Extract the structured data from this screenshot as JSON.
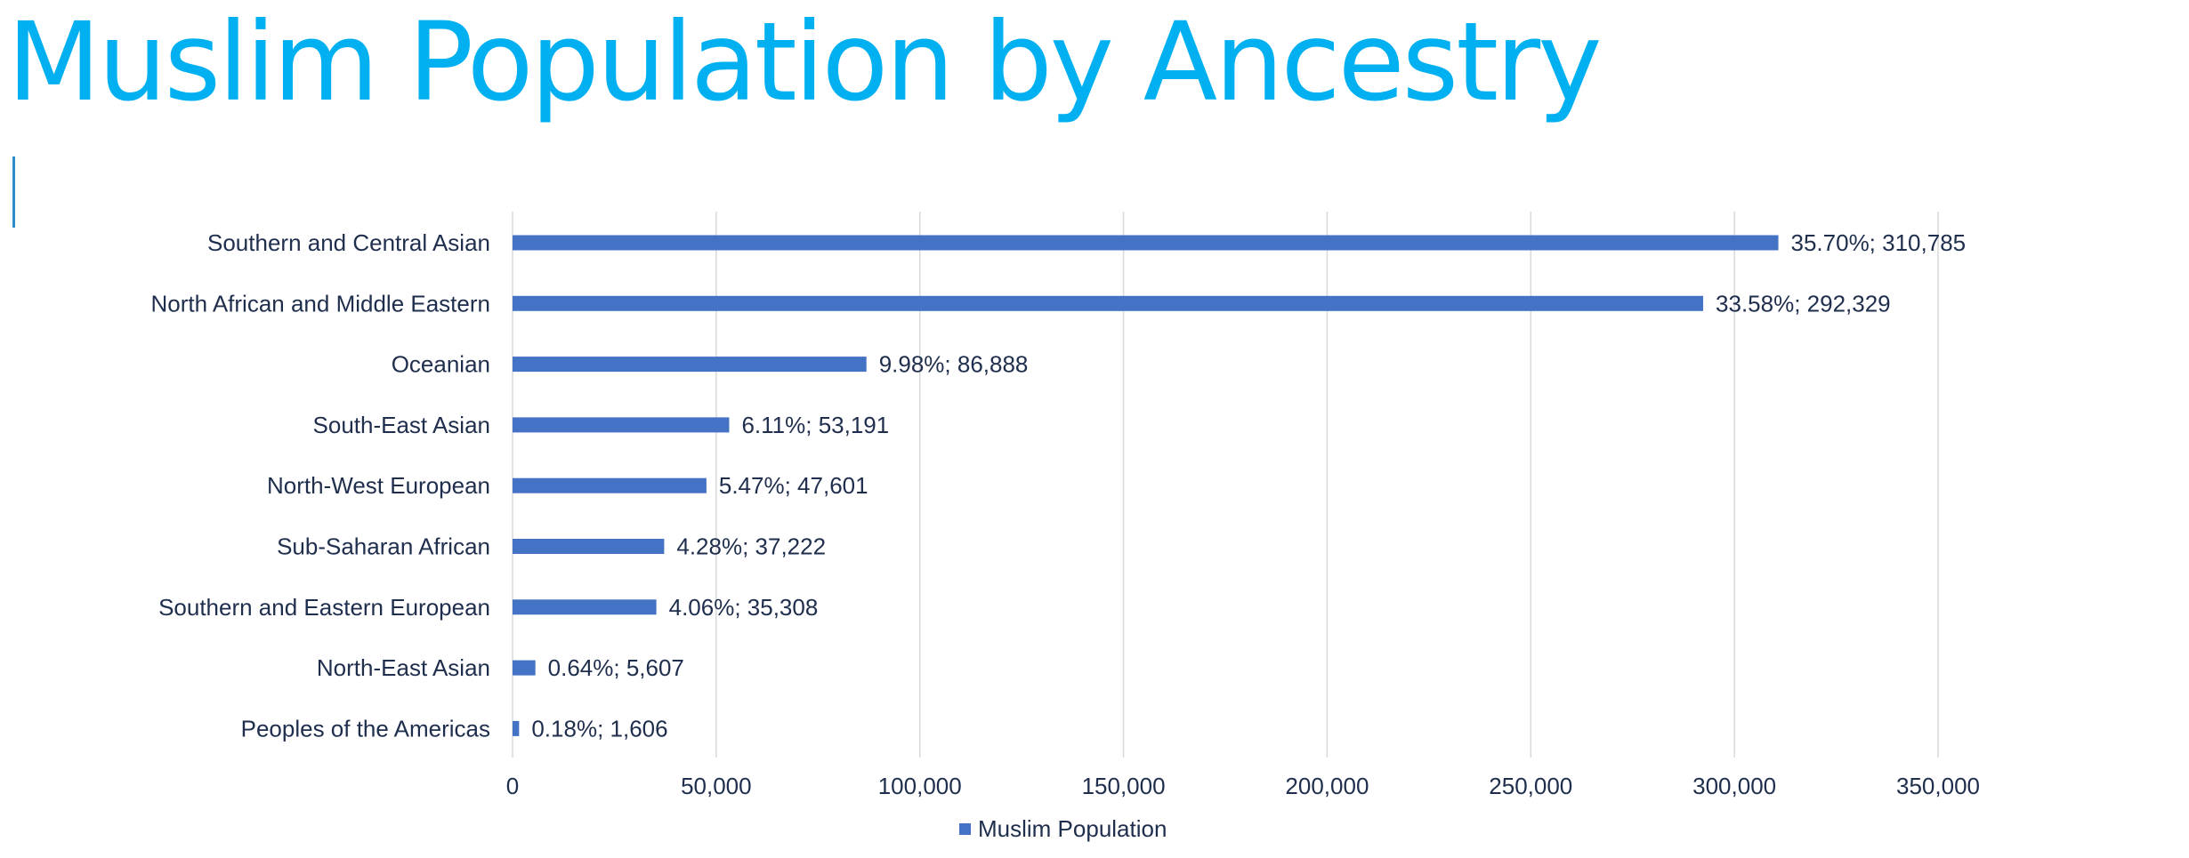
{
  "slide": {
    "title": "Muslim Population by Ancestry",
    "title_color": "#00b0f0"
  },
  "chart_data": {
    "type": "bar",
    "orientation": "horizontal",
    "title": "",
    "xlabel": "",
    "ylabel": "",
    "categories": [
      "Southern and Central Asian",
      "North African and Middle Eastern",
      "Oceanian",
      "South-East Asian",
      "North-West European",
      "Sub-Saharan African",
      "Southern and Eastern European",
      "North-East Asian",
      "Peoples of the Americas"
    ],
    "series": [
      {
        "name": "Muslim Population",
        "color": "#4472c4",
        "values": [
          310785,
          292329,
          86888,
          53191,
          47601,
          37222,
          35308,
          5607,
          1606
        ],
        "data_labels": [
          "35.70%; 310,785",
          "33.58%; 292,329",
          "9.98%; 86,888",
          "6.11%; 53,191",
          "5.47%; 47,601",
          "4.28%; 37,222",
          "4.06%; 35,308",
          "0.64%; 5,607",
          "0.18%; 1,606"
        ]
      }
    ],
    "xlim": [
      0,
      350000
    ],
    "x_ticks": [
      0,
      50000,
      100000,
      150000,
      200000,
      250000,
      300000,
      350000
    ],
    "x_tick_labels": [
      "0",
      "50,000",
      "100,000",
      "150,000",
      "200,000",
      "250,000",
      "300,000",
      "350,000"
    ],
    "grid": "vertical",
    "grid_color": "#d9d9d9",
    "legend": "bottom-center"
  }
}
